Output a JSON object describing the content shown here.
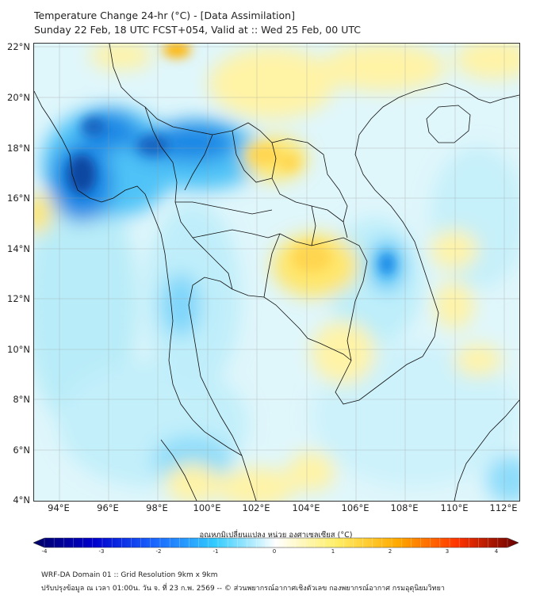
{
  "title": {
    "line1": "Temperature Change 24-hr (°C) - [Data Assimilation]",
    "line2": "Sunday 22 Feb, 18 UTC FCST+054, Valid at :: Wed 25 Feb, 00 UTC"
  },
  "map": {
    "lat_labels": [
      "22°N",
      "20°N",
      "18°N",
      "16°N",
      "14°N",
      "12°N",
      "10°N",
      "8°N",
      "6°N",
      "4°N"
    ],
    "lon_labels": [
      "94°E",
      "96°E",
      "98°E",
      "100°E",
      "102°E",
      "104°E",
      "106°E",
      "108°E",
      "110°E",
      "112°E"
    ]
  },
  "colorbar": {
    "title": "อุณหภูมิเปลี่ยนแปลง หน่วย องศาเซลเซียส (°C)",
    "ticks": [
      "-4",
      "-3",
      "-2",
      "-1",
      "0",
      "1",
      "2",
      "3",
      "4"
    ],
    "colors": [
      "#000066",
      "#0000cc",
      "#1a66ff",
      "#33ccff",
      "#ffffff",
      "#ffee66",
      "#ffaa00",
      "#ff3300",
      "#660000"
    ]
  },
  "footer": {
    "line1": "WRF-DA Domain 01 :: Grid Resolution 9km x 9km",
    "line2": "ปรับปรุงข้อมูล ณ เวลา 01:00น. วัน จ. ที่ 23 ก.พ. 2569 -- © ส่วนพยากรณ์อากาศเชิงตัวเลข กองพยากรณ์อากาศ กรมอุตุนิยมวิทยา"
  }
}
